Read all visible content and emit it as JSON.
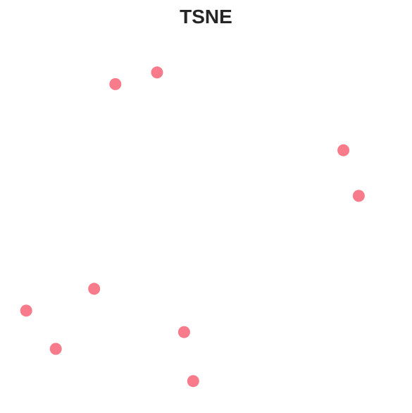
{
  "chart_data": {
    "type": "scatter",
    "title": "TSNE",
    "xlabel": "",
    "ylabel": "",
    "axes_visible": false,
    "grid": false,
    "legend": "none",
    "xlim": [
      0,
      100
    ],
    "ylim": [
      0,
      100
    ],
    "series": [
      {
        "color": "#f77b8a",
        "points": [
          {
            "x": 36.6,
            "y": 94.8
          },
          {
            "x": 25.2,
            "y": 91.3
          },
          {
            "x": 87.6,
            "y": 71.6
          },
          {
            "x": 91.8,
            "y": 58.0
          },
          {
            "x": 19.4,
            "y": 30.3
          },
          {
            "x": 0.8,
            "y": 23.8
          },
          {
            "x": 44.0,
            "y": 17.4
          },
          {
            "x": 8.9,
            "y": 12.4
          },
          {
            "x": 46.5,
            "y": 2.8
          }
        ]
      }
    ]
  }
}
